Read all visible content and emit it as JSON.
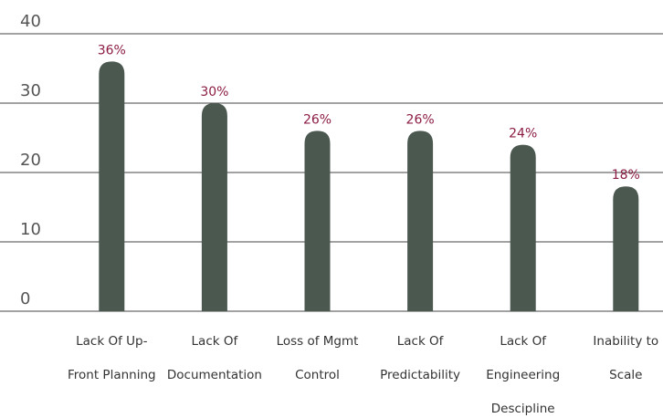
{
  "chart_data": {
    "type": "bar",
    "categories": [
      "Lack Of Up-Front Planning",
      "Lack Of Documentation",
      "Loss of Mgmt Control",
      "Lack Of Predictability",
      "Lack Of Engineering Descipline",
      "Inability to Scale"
    ],
    "values": [
      36,
      30,
      26,
      26,
      24,
      18
    ],
    "value_labels": [
      "36%",
      "30%",
      "26%",
      "26%",
      "24%",
      "18%"
    ],
    "color": "#4a5850",
    "label_color": "#8c1c45",
    "ylim": [
      0,
      40
    ],
    "yticks": [
      0,
      10,
      20,
      30,
      40
    ],
    "grid": true
  }
}
